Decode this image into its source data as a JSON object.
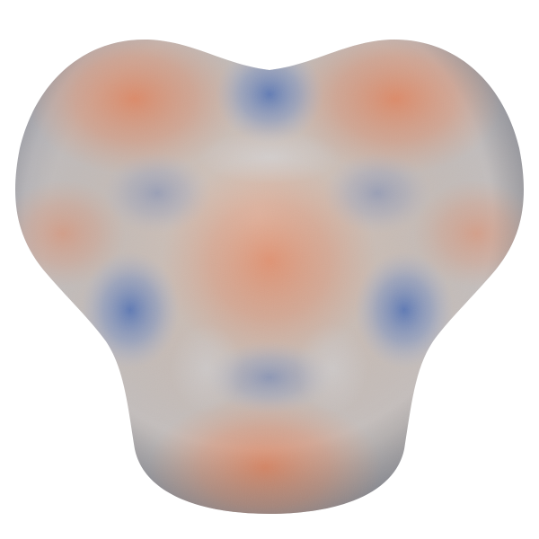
{
  "scene": {
    "background_color": "#ffffff",
    "object": "blob-surface",
    "colormap": {
      "low": "#4f6fae",
      "mid": "#c9cdd3",
      "high": "#e2906f"
    }
  }
}
